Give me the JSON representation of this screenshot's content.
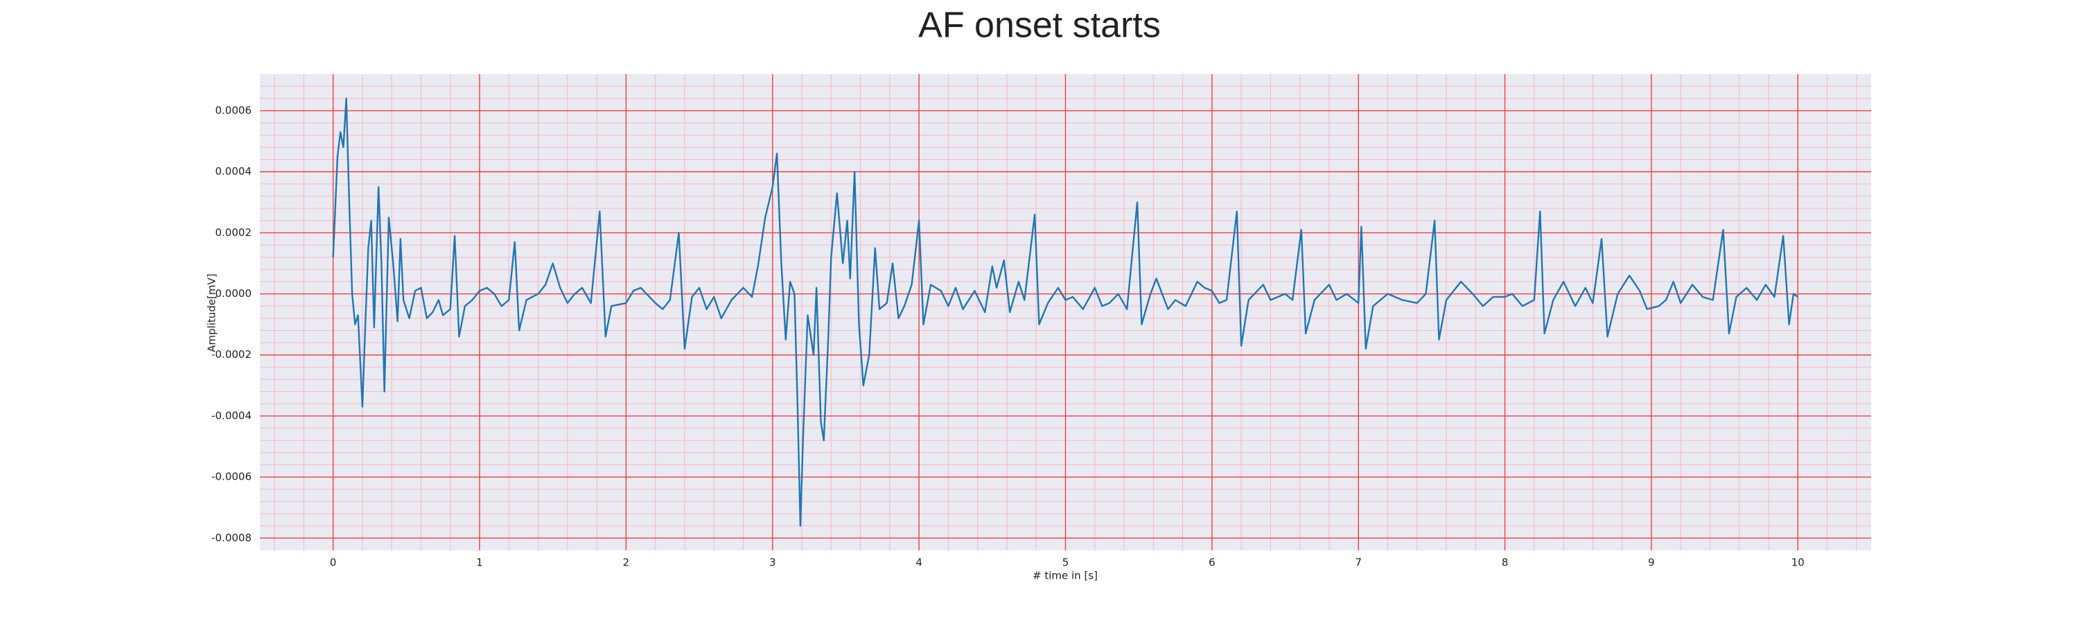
{
  "chart_data": {
    "type": "line",
    "title": "AF onset starts",
    "x_label": "# time in [s]",
    "y_label": "Amplitude[mV]",
    "xlim": [
      -0.5,
      10.5
    ],
    "ylim": [
      -0.00084,
      0.00072
    ],
    "xticks": [
      0,
      1,
      2,
      3,
      4,
      5,
      6,
      7,
      8,
      9,
      10
    ],
    "yticks": [
      -0.0008,
      -0.0006,
      -0.0004,
      -0.0002,
      {
        "value": 0,
        "label": "0.0000"
      },
      0.0002,
      0.0004,
      0.0006
    ],
    "grid": true,
    "minor_grid": true,
    "background": "#eaeaf2",
    "grid_color": "#f04040",
    "minor_grid_color": "#f5b8c4",
    "series": [
      {
        "color": "#1f77b4",
        "x": [
          0,
          0.03,
          0.05,
          0.07,
          0.09,
          0.11,
          0.13,
          0.15,
          0.17,
          0.2,
          0.22,
          0.24,
          0.26,
          0.28,
          0.31,
          0.33,
          0.35,
          0.38,
          0.41,
          0.44,
          0.46,
          0.48,
          0.52,
          0.56,
          0.6,
          0.64,
          0.68,
          0.72,
          0.75,
          0.8,
          0.83,
          0.86,
          0.9,
          0.95,
          1.0,
          1.05,
          1.1,
          1.15,
          1.2,
          1.24,
          1.27,
          1.32,
          1.4,
          1.45,
          1.5,
          1.55,
          1.6,
          1.65,
          1.7,
          1.76,
          1.82,
          1.86,
          1.9,
          2.0,
          2.05,
          2.1,
          2.2,
          2.25,
          2.3,
          2.36,
          2.4,
          2.45,
          2.5,
          2.55,
          2.6,
          2.65,
          2.72,
          2.8,
          2.86,
          2.9,
          2.95,
          3.0,
          3.03,
          3.06,
          3.09,
          3.12,
          3.15,
          3.17,
          3.19,
          3.21,
          3.24,
          3.28,
          3.3,
          3.33,
          3.35,
          3.38,
          3.4,
          3.44,
          3.48,
          3.51,
          3.53,
          3.56,
          3.59,
          3.62,
          3.66,
          3.7,
          3.73,
          3.78,
          3.82,
          3.86,
          3.9,
          3.95,
          4.0,
          4.03,
          4.08,
          4.15,
          4.2,
          4.25,
          4.3,
          4.38,
          4.45,
          4.5,
          4.53,
          4.58,
          4.62,
          4.68,
          4.72,
          4.75,
          4.79,
          4.82,
          4.88,
          4.95,
          5.0,
          5.05,
          5.12,
          5.2,
          5.25,
          5.3,
          5.36,
          5.42,
          5.49,
          5.52,
          5.58,
          5.62,
          5.7,
          5.75,
          5.82,
          5.9,
          5.95,
          6.0,
          6.05,
          6.1,
          6.17,
          6.2,
          6.25,
          6.35,
          6.4,
          6.5,
          6.55,
          6.61,
          6.64,
          6.7,
          6.8,
          6.85,
          6.92,
          7.0,
          7.02,
          7.05,
          7.1,
          7.2,
          7.3,
          7.4,
          7.46,
          7.52,
          7.55,
          7.6,
          7.7,
          7.78,
          7.85,
          7.92,
          8.0,
          8.05,
          8.12,
          8.2,
          8.24,
          8.27,
          8.33,
          8.4,
          8.48,
          8.55,
          8.6,
          8.66,
          8.7,
          8.77,
          8.85,
          8.92,
          8.97,
          9.05,
          9.1,
          9.15,
          9.2,
          9.28,
          9.35,
          9.42,
          9.49,
          9.53,
          9.58,
          9.65,
          9.72,
          9.78,
          9.84,
          9.9,
          9.94,
          9.97,
          10.0
        ],
        "values": [
          0.00012,
          0.00045,
          0.00053,
          0.00048,
          0.00064,
          0.0003,
          0.0,
          -0.0001,
          -7e-05,
          -0.00037,
          -0.0001,
          0.00015,
          0.00024,
          -0.00011,
          0.00035,
          0.0001,
          -0.00032,
          0.00025,
          0.0001,
          -9e-05,
          0.00018,
          -2e-05,
          -8e-05,
          1e-05,
          2e-05,
          -8e-05,
          -6e-05,
          -2e-05,
          -7e-05,
          -5e-05,
          0.00019,
          -0.00014,
          -4e-05,
          -2e-05,
          1e-05,
          2e-05,
          0.0,
          -4e-05,
          -2e-05,
          0.00017,
          -0.00012,
          -2e-05,
          0.0,
          3e-05,
          0.0001,
          2e-05,
          -3e-05,
          0.0,
          2e-05,
          -3e-05,
          0.00027,
          -0.00014,
          -4e-05,
          -3e-05,
          1e-05,
          2e-05,
          -3e-05,
          -5e-05,
          -2e-05,
          0.0002,
          -0.00018,
          -1e-05,
          2e-05,
          -5e-05,
          -1e-05,
          -8e-05,
          -2e-05,
          2e-05,
          -1e-05,
          9e-05,
          0.00025,
          0.00035,
          0.00046,
          0.0001,
          -0.00015,
          4e-05,
          0.0,
          -0.00035,
          -0.00076,
          -0.00045,
          -7e-05,
          -0.0002,
          2e-05,
          -0.00042,
          -0.00048,
          -0.00015,
          0.00012,
          0.00033,
          0.0001,
          0.00024,
          5e-05,
          0.0004,
          -0.0001,
          -0.0003,
          -0.0002,
          0.00015,
          -5e-05,
          -3e-05,
          0.0001,
          -8e-05,
          -4e-05,
          3e-05,
          0.00024,
          -0.0001,
          3e-05,
          1e-05,
          -4e-05,
          2e-05,
          -5e-05,
          1e-05,
          -6e-05,
          9e-05,
          2e-05,
          0.00011,
          -6e-05,
          4e-05,
          -2e-05,
          0.0001,
          0.00026,
          -0.0001,
          -3e-05,
          2e-05,
          -2e-05,
          -1e-05,
          -5e-05,
          2e-05,
          -4e-05,
          -3e-05,
          0.0,
          -5e-05,
          0.0003,
          -0.0001,
          0.0,
          5e-05,
          -5e-05,
          -2e-05,
          -4e-05,
          4e-05,
          2e-05,
          1e-05,
          -3e-05,
          -2e-05,
          0.00027,
          -0.00017,
          -2e-05,
          3e-05,
          -2e-05,
          0.0,
          -2e-05,
          0.00021,
          -0.00013,
          -2e-05,
          3e-05,
          -2e-05,
          0.0,
          -3e-05,
          0.00022,
          -0.00018,
          -4e-05,
          0.0,
          -2e-05,
          -3e-05,
          0.0,
          0.00024,
          -0.00015,
          -2e-05,
          4e-05,
          0.0,
          -4e-05,
          -1e-05,
          -1e-05,
          0.0,
          -4e-05,
          -2e-05,
          0.00027,
          -0.00013,
          -2e-05,
          4e-05,
          -4e-05,
          2e-05,
          -3e-05,
          0.00018,
          -0.00014,
          0.0,
          6e-05,
          1e-05,
          -5e-05,
          -4e-05,
          -2e-05,
          4e-05,
          -3e-05,
          3e-05,
          -1e-05,
          -2e-05,
          0.00021,
          -0.00013,
          -1e-05,
          2e-05,
          -2e-05,
          3e-05,
          -1e-05,
          0.00019,
          -0.0001,
          0.0,
          -1e-05
        ]
      }
    ]
  }
}
